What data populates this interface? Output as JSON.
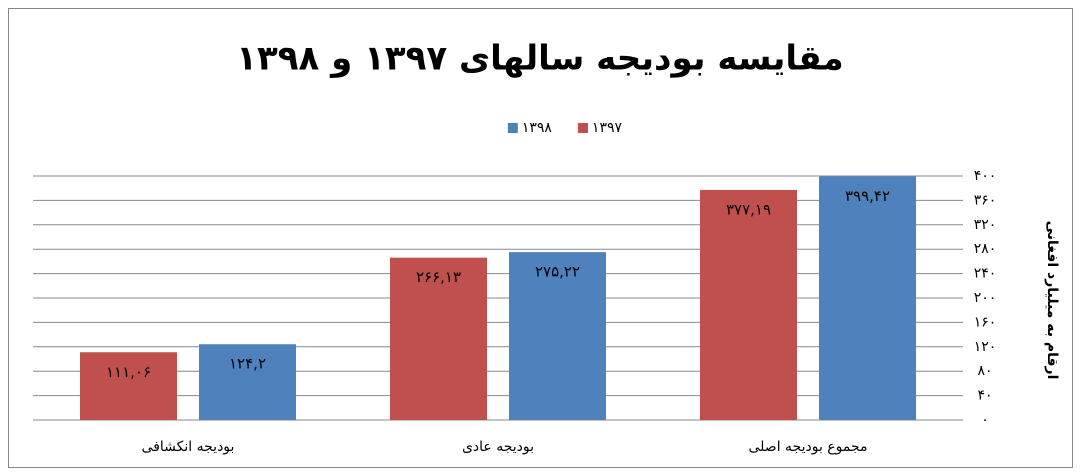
{
  "chart_data": {
    "type": "bar",
    "title": "مقایسه بودیجه سالهای ۱۳۹۷ و ۱۳۹۸",
    "y_label": "ارقام به میلیارد افغانی",
    "categories": [
      "مجموع بودیجه اصلی",
      "بودیجه عادی",
      "بودیجه انکشافی"
    ],
    "series": [
      {
        "name": "۱۳۹۷",
        "color": "#c0504d",
        "values": [
          377.19,
          266.13,
          111.06
        ],
        "value_labels": [
          "۳۷۷,۱۹",
          "۲۶۶,۱۳",
          "۱۱۱,۰۶"
        ]
      },
      {
        "name": "۱۳۹۸",
        "color": "#4f81bd",
        "values": [
          399.42,
          275.22,
          124.2
        ],
        "value_labels": [
          "۳۹۹,۴۲",
          "۲۷۵,۲۲",
          "۱۲۴,۲"
        ]
      }
    ],
    "ylim": [
      0,
      400
    ],
    "yticks": [
      {
        "value": 0,
        "label": "۰"
      },
      {
        "value": 40,
        "label": "۴۰"
      },
      {
        "value": 80,
        "label": "۸۰"
      },
      {
        "value": 120,
        "label": "۱۲۰"
      },
      {
        "value": 160,
        "label": "۱۶۰"
      },
      {
        "value": 200,
        "label": "۲۰۰"
      },
      {
        "value": 240,
        "label": "۲۴۰"
      },
      {
        "value": 280,
        "label": "۲۸۰"
      },
      {
        "value": 320,
        "label": "۳۲۰"
      },
      {
        "value": 360,
        "label": "۳۶۰"
      },
      {
        "value": 400,
        "label": "۴۰۰"
      }
    ],
    "grid": true,
    "legend": "top"
  }
}
